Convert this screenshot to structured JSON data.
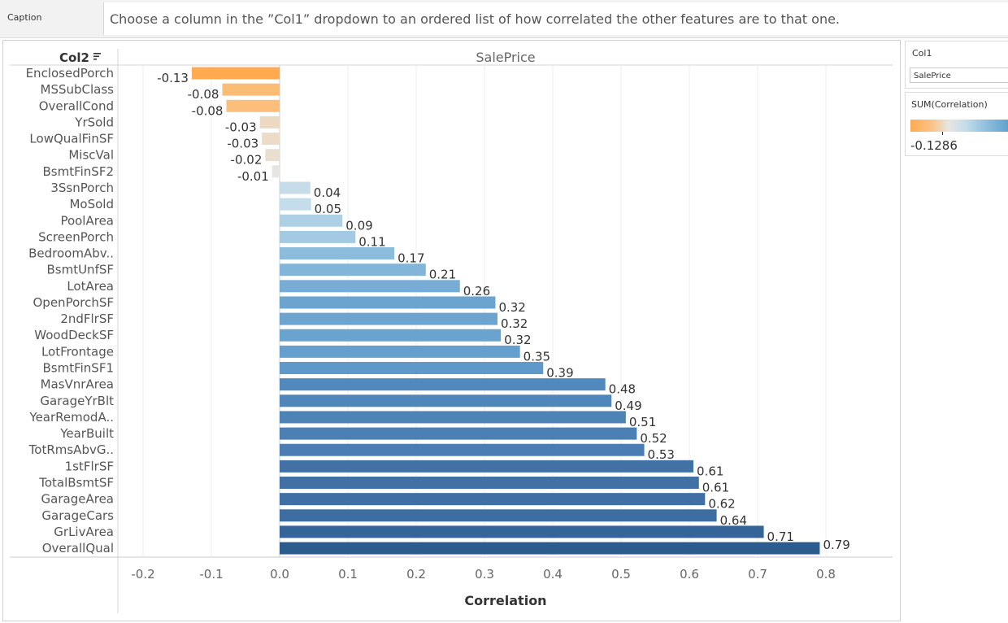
{
  "caption": {
    "label": "Caption",
    "text": "Choose a column in the ”Col1” dropdown to an ordered list of how correlated the other features are to that one."
  },
  "filter": {
    "title": "Col1",
    "value": "SalePrice"
  },
  "legend": {
    "title": "SUM(Correlation)",
    "value": "-0.1286"
  },
  "chart_data": {
    "type": "bar",
    "orientation": "horizontal",
    "title": "SalePrice",
    "row_header": "Col2",
    "xlabel": "Correlation",
    "xlim": [
      -0.2,
      0.8
    ],
    "xticks": [
      "-0.2",
      "-0.1",
      "0.0",
      "0.1",
      "0.2",
      "0.3",
      "0.4",
      "0.5",
      "0.6",
      "0.7",
      "0.8"
    ],
    "grid": true,
    "colors": {
      "negative": "#ffaa50",
      "neutral": "#e6e6e3",
      "positive_dark": "#2b5a8c"
    },
    "categories": [
      "EnclosedPorch",
      "MSSubClass",
      "OverallCond",
      "YrSold",
      "LowQualFinSF",
      "MiscVal",
      "BsmtFinSF2",
      "3SsnPorch",
      "MoSold",
      "PoolArea",
      "ScreenPorch",
      "BedroomAbv..",
      "BsmtUnfSF",
      "LotArea",
      "OpenPorchSF",
      "2ndFlrSF",
      "WoodDeckSF",
      "LotFrontage",
      "BsmtFinSF1",
      "MasVnrArea",
      "GarageYrBlt",
      "YearRemodA..",
      "YearBuilt",
      "TotRmsAbvG..",
      "1stFlrSF",
      "TotalBsmtSF",
      "GarageArea",
      "GarageCars",
      "GrLivArea",
      "OverallQual"
    ],
    "values": [
      -0.1286,
      -0.084,
      -0.078,
      -0.029,
      -0.026,
      -0.021,
      -0.011,
      0.045,
      0.046,
      0.092,
      0.111,
      0.168,
      0.214,
      0.264,
      0.316,
      0.319,
      0.324,
      0.352,
      0.386,
      0.477,
      0.486,
      0.507,
      0.523,
      0.534,
      0.606,
      0.614,
      0.623,
      0.64,
      0.709,
      0.791
    ],
    "labels": [
      "-0.13",
      "-0.08",
      "-0.08",
      "-0.03",
      "-0.03",
      "-0.02",
      "-0.01",
      "0.04",
      "0.05",
      "0.09",
      "0.11",
      "0.17",
      "0.21",
      "0.26",
      "0.32",
      "0.32",
      "0.32",
      "0.35",
      "0.39",
      "0.48",
      "0.49",
      "0.51",
      "0.52",
      "0.53",
      "0.61",
      "0.61",
      "0.62",
      "0.64",
      "0.71",
      "0.79"
    ]
  }
}
